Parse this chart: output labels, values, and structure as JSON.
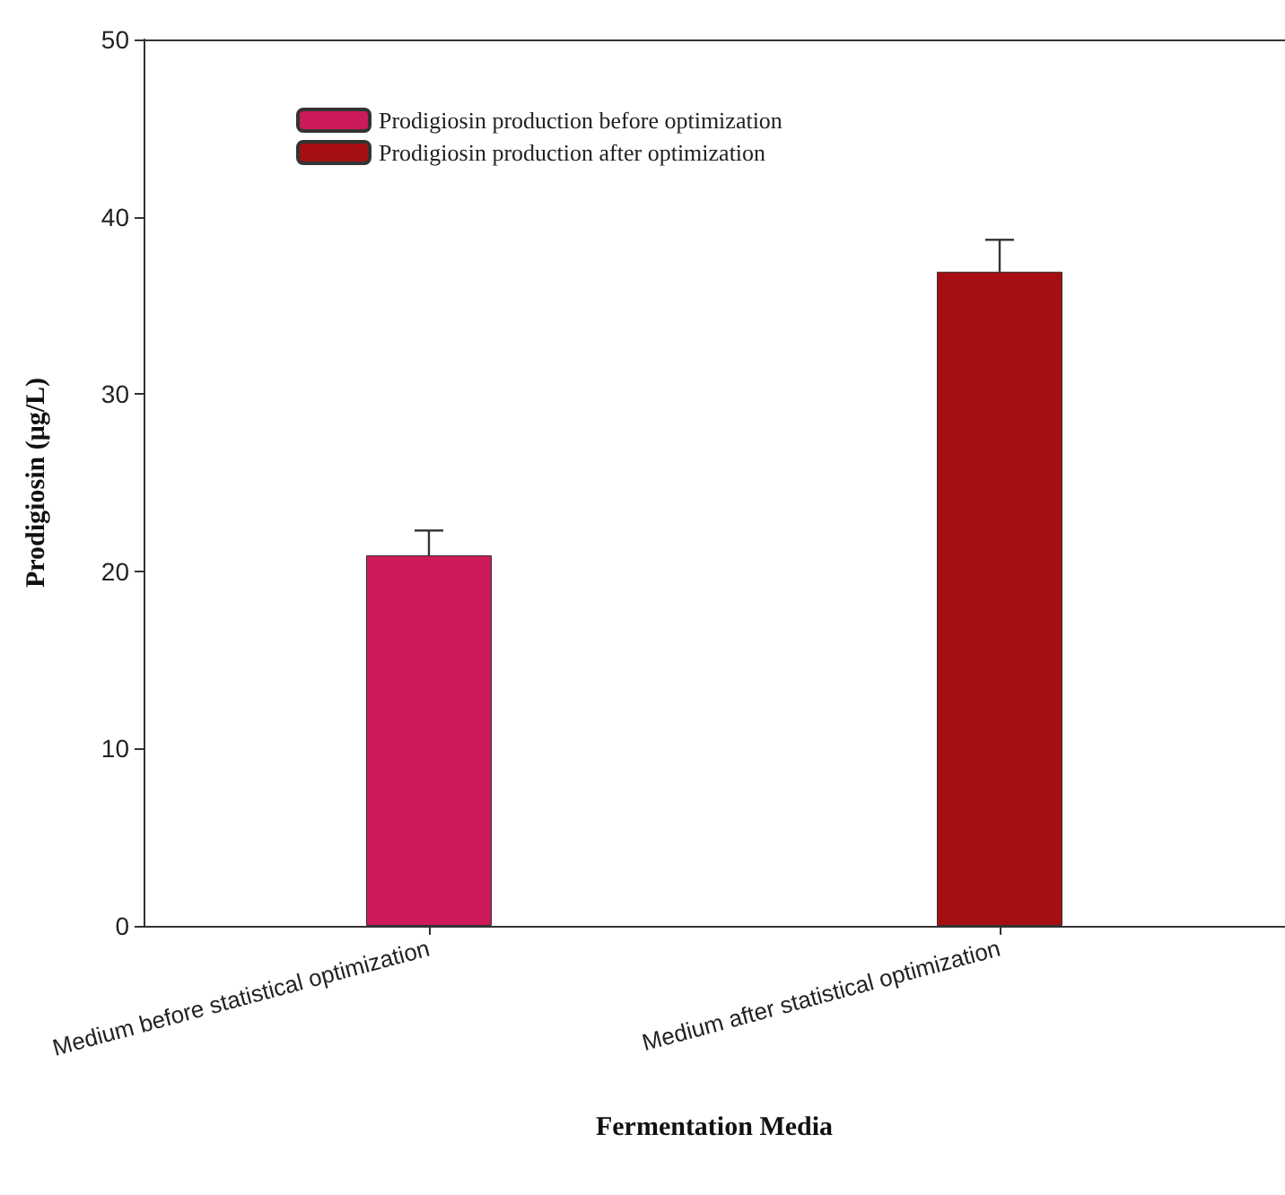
{
  "chart_data": {
    "type": "bar",
    "xlabel": "Fermentation Media",
    "ylabel": "Prodigiosin (μg/L)",
    "categories": [
      "Medium before statistical optimization",
      "Medium after statistical optimization"
    ],
    "series": [
      {
        "name": "Prodigiosin production before optimization",
        "color": "#cc1a5a",
        "values": [
          20.9,
          null
        ],
        "errors": [
          1.4,
          null
        ]
      },
      {
        "name": "Prodigiosin production after optimization",
        "color": "#a50f12",
        "values": [
          null,
          36.9
        ],
        "errors": [
          null,
          1.8
        ]
      }
    ],
    "ylim": [
      0,
      50
    ],
    "yticks": [
      0,
      10,
      20,
      30,
      40,
      50
    ],
    "grid": false,
    "legend": "top left"
  }
}
